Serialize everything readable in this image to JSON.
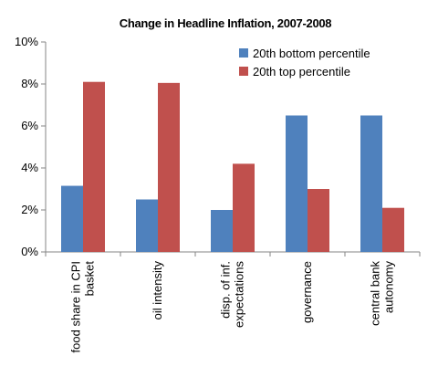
{
  "chart_data": {
    "type": "bar",
    "title": "Change in Headline Inflation, 2007-2008",
    "categories": [
      [
        "food share in CPI",
        "basket"
      ],
      [
        "oil intensity"
      ],
      [
        "disp. of inf.",
        "expectations"
      ],
      [
        "governance"
      ],
      [
        "central bank",
        "autonomy"
      ]
    ],
    "series": [
      {
        "name": "20th bottom percentile",
        "color": "#4f81bd",
        "values": [
          3.15,
          2.5,
          2.0,
          6.5,
          6.5
        ]
      },
      {
        "name": "20th top percentile",
        "color": "#c0504d",
        "values": [
          8.1,
          8.05,
          4.2,
          3.0,
          2.1
        ]
      }
    ],
    "ylim": [
      0,
      10
    ],
    "yticks": [
      "0%",
      "2%",
      "4%",
      "6%",
      "8%",
      "10%"
    ],
    "ytick_values": [
      0,
      2,
      4,
      6,
      8,
      10
    ],
    "legend_position": "top-right",
    "grid": false
  }
}
